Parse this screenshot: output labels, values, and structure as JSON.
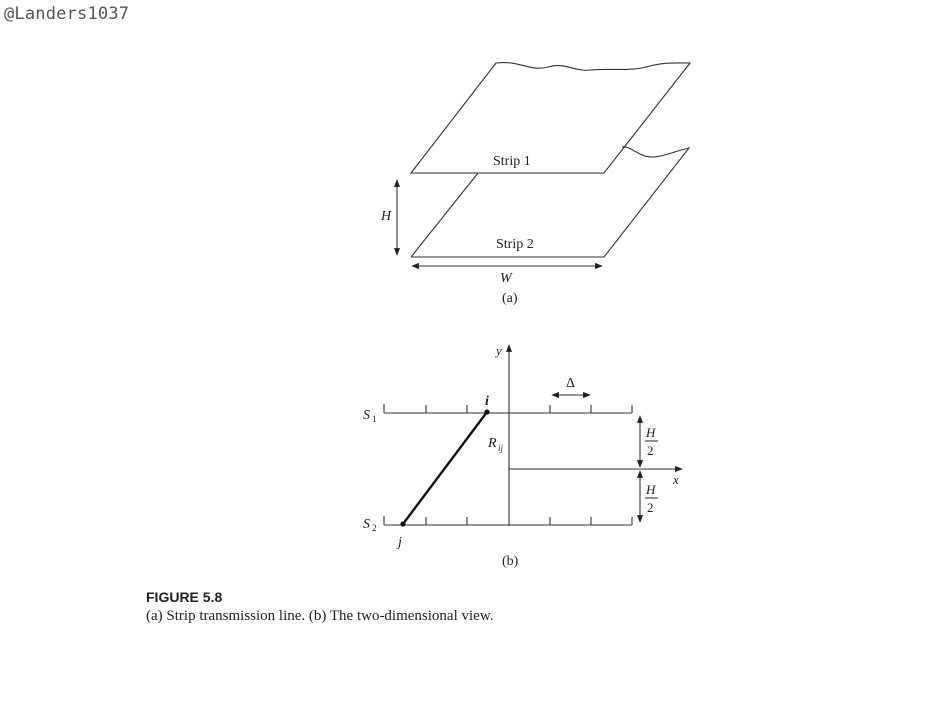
{
  "watermark": "@Landers1037",
  "panel_a": {
    "strip1_label": "Strip 1",
    "strip2_label": "Strip 2",
    "height_label": "H",
    "width_label": "W",
    "panel_label": "(a)"
  },
  "panel_b": {
    "y_axis_label": "y",
    "x_axis_label": "x",
    "s1_label": "S",
    "s1_sub": "1",
    "s2_label": "S",
    "s2_sub": "2",
    "point_i": "i",
    "point_j": "j",
    "r_label": "R",
    "r_sub": "ij",
    "delta_label": "Δ",
    "half_h_num": "H",
    "half_h_den": "2",
    "panel_label": "(b)"
  },
  "caption": {
    "title": "FIGURE 5.8",
    "text": "(a) Strip transmission line. (b) The two-dimensional view."
  }
}
